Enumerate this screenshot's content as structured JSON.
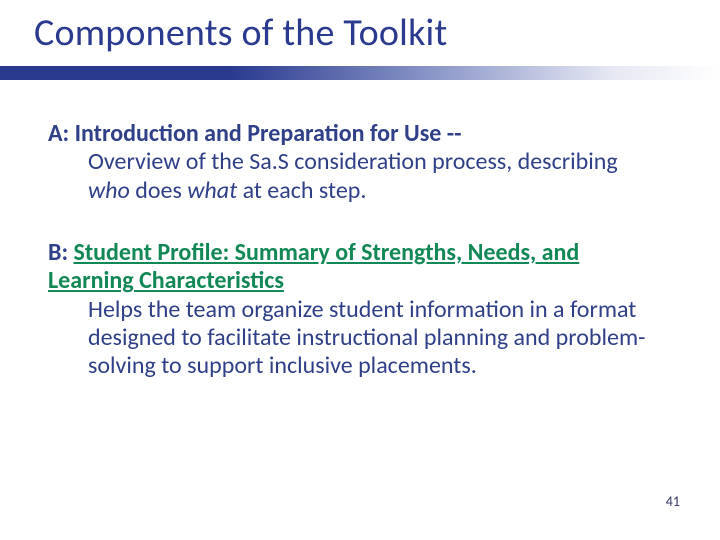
{
  "colors": {
    "title_color": "#2a3a8f",
    "body_color": "#2f3f88",
    "link_color": "#118855",
    "bar_gradient_from": "#2a3a8f",
    "bar_gradient_mid": "#8a96c8",
    "bar_gradient_to": "#ffffff",
    "background": "#ffffff"
  },
  "typography": {
    "title_fontsize_pt": 29,
    "body_fontsize_pt": 18,
    "pagenum_fontsize_pt": 11
  },
  "title": "Components of the Toolkit",
  "section_a": {
    "prefix": "A:  ",
    "heading": "Introduction and Preparation for Use --",
    "body_1": "Overview of the Sa.S consideration process, describing ",
    "who": "who",
    "mid": " does ",
    "what": "what",
    "body_2": " at each step."
  },
  "section_b": {
    "prefix": "B:  ",
    "heading": "Student Profile:  Summary of Strengths, Needs, and Learning Characteristics",
    "body": "Helps the team organize student information in a format designed to facilitate instructional planning and problem-solving to support inclusive placements."
  },
  "page_number": "41"
}
